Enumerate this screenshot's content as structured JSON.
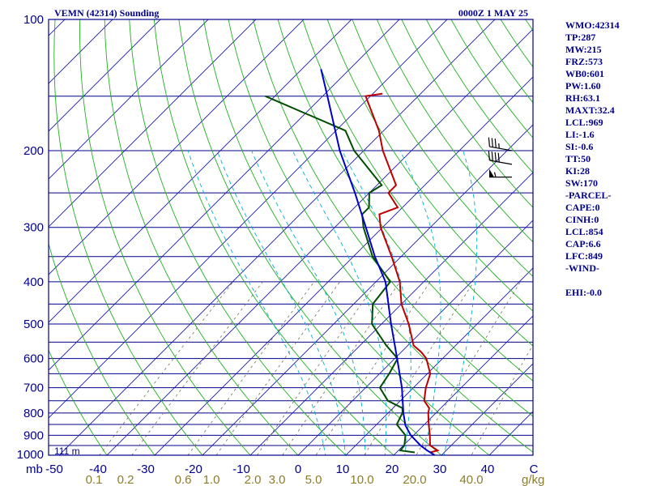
{
  "chart_data": {
    "type": "line",
    "title": "VEMN (42314) Sounding",
    "valid_time": "0000Z  1 MAY 25",
    "station_elevation_label": "111 m",
    "pressure_unit_label": "mb",
    "mixing_ratio_unit_label": "g/kg",
    "pressure_ticks": [
      "100",
      "200",
      "300",
      "400",
      "500",
      "600",
      "700",
      "800",
      "900",
      "1000"
    ],
    "temperature_ticks": [
      "-50",
      "-40",
      "-30",
      "-20",
      "-10",
      "0",
      "10",
      "20",
      "30",
      "40",
      "C"
    ],
    "mixing_ratio_ticks": [
      "0.1",
      "0.2",
      "0.6",
      "1.0",
      "2.0",
      "3.0",
      "5.0",
      "10.0",
      "20.0",
      "40.0"
    ],
    "xlim_celsius": [
      -50,
      50
    ],
    "ylim_hpa": [
      1000,
      100
    ],
    "pressure_scale": "log",
    "isotherm_skew": "45deg",
    "colors": {
      "temperature": "#c00000",
      "dewpoint": "#004d00",
      "parcel": "#0000c8",
      "isobar": "#00008b",
      "isotherm": "#1a1aa6",
      "dry_adiabat": "#20b020",
      "moist_adiabat": "#00b0d0",
      "mixing_ratio": "#707050"
    },
    "series": [
      {
        "name": "Temperature",
        "points": [
          {
            "p": 985,
            "t": 27.1
          },
          {
            "p": 975,
            "t": 28.2
          },
          {
            "p": 950,
            "t": 25.6
          },
          {
            "p": 900,
            "t": 23.4
          },
          {
            "p": 850,
            "t": 20.9
          },
          {
            "p": 800,
            "t": 18.4
          },
          {
            "p": 780,
            "t": 17.6
          },
          {
            "p": 750,
            "t": 15.0
          },
          {
            "p": 700,
            "t": 12.6
          },
          {
            "p": 650,
            "t": 10.6
          },
          {
            "p": 600,
            "t": 6.6
          },
          {
            "p": 580,
            "t": 4.2
          },
          {
            "p": 560,
            "t": 1.2
          },
          {
            "p": 500,
            "t": -4.3
          },
          {
            "p": 450,
            "t": -10.0
          },
          {
            "p": 400,
            "t": -15.0
          },
          {
            "p": 350,
            "t": -22.0
          },
          {
            "p": 300,
            "t": -30.4
          },
          {
            "p": 280,
            "t": -33.4
          },
          {
            "p": 270,
            "t": -31.0
          },
          {
            "p": 250,
            "t": -36.0
          },
          {
            "p": 240,
            "t": -36.0
          },
          {
            "p": 200,
            "t": -46.0
          },
          {
            "p": 180,
            "t": -51.0
          },
          {
            "p": 150,
            "t": -61.0
          },
          {
            "p": 148,
            "t": -58.0
          }
        ]
      },
      {
        "name": "Dewpoint",
        "points": [
          {
            "p": 985,
            "t": 23.8
          },
          {
            "p": 975,
            "t": 20.4
          },
          {
            "p": 950,
            "t": 20.2
          },
          {
            "p": 900,
            "t": 18.3
          },
          {
            "p": 850,
            "t": 14.2
          },
          {
            "p": 800,
            "t": 13.0
          },
          {
            "p": 780,
            "t": 12.0
          },
          {
            "p": 750,
            "t": 7.4
          },
          {
            "p": 700,
            "t": 3.0
          },
          {
            "p": 650,
            "t": 2.0
          },
          {
            "p": 600,
            "t": 0.6
          },
          {
            "p": 560,
            "t": -4.5
          },
          {
            "p": 500,
            "t": -12.0
          },
          {
            "p": 450,
            "t": -16.0
          },
          {
            "p": 400,
            "t": -17.0
          },
          {
            "p": 350,
            "t": -26.0
          },
          {
            "p": 300,
            "t": -34.0
          },
          {
            "p": 280,
            "t": -37.0
          },
          {
            "p": 270,
            "t": -37.0
          },
          {
            "p": 250,
            "t": -40.0
          },
          {
            "p": 240,
            "t": -39.0
          },
          {
            "p": 200,
            "t": -52.0
          },
          {
            "p": 180,
            "t": -58.0
          },
          {
            "p": 150,
            "t": -82.0
          }
        ]
      },
      {
        "name": "Parcel",
        "points": [
          {
            "p": 1000,
            "t": 28.6
          },
          {
            "p": 975,
            "t": 26.0
          },
          {
            "p": 950,
            "t": 23.6
          },
          {
            "p": 900,
            "t": 19.4
          },
          {
            "p": 854,
            "t": 16.2
          },
          {
            "p": 800,
            "t": 13.2
          },
          {
            "p": 700,
            "t": 7.6
          },
          {
            "p": 600,
            "t": 0.5
          },
          {
            "p": 500,
            "t": -8.0
          },
          {
            "p": 400,
            "t": -18.0
          },
          {
            "p": 350,
            "t": -25.5
          },
          {
            "p": 300,
            "t": -33.5
          },
          {
            "p": 250,
            "t": -43.0
          },
          {
            "p": 200,
            "t": -55.0
          },
          {
            "p": 150,
            "t": -69.0
          },
          {
            "p": 130,
            "t": -76.0
          }
        ]
      }
    ],
    "wind_barbs": [
      {
        "p": 200,
        "dir_deg": 280,
        "speed_kt": 35
      },
      {
        "p": 215,
        "dir_deg": 280,
        "speed_kt": 40
      },
      {
        "p": 230,
        "dir_deg": 270,
        "speed_kt": 55
      }
    ],
    "indices": {
      "WMO": "42314",
      "TP": "287",
      "MW": "215",
      "FRZ": "573",
      "WB0": "601",
      "PW": "1.60",
      "RH": "63.1",
      "MAXT": "32.4",
      "LCL": "969",
      "LI": "-1.6",
      "SI": "-0.6",
      "TT": "50",
      "KI": "28",
      "SW": "170",
      "CAPE": "0",
      "CINH": "0",
      "LCL_PARCEL": "854",
      "CAP": "6.6",
      "LFC": "849",
      "EHI": "-0.0"
    },
    "index_lines": [
      "WMO:42314",
      "TP:287",
      "MW:215",
      "FRZ:573",
      "WB0:601",
      "PW:1.60",
      "RH:63.1",
      "MAXT:32.4",
      "LCL:969",
      "LI:-1.6",
      "SI:-0.6",
      "TT:50",
      "KI:28",
      "SW:170",
      "-PARCEL-",
      "CAPE:0",
      "CINH:0",
      "LCL:854",
      "CAP:6.6",
      "LFC:849",
      "-WIND-",
      "",
      "EHI:-0.0"
    ]
  }
}
